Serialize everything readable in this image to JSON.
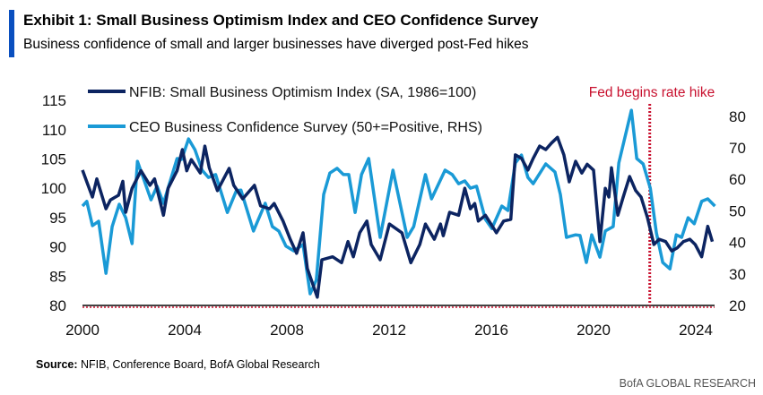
{
  "header": {
    "title": "Exhibit 1: Small Business Optimism Index and CEO Confidence Survey",
    "subtitle": "Business confidence of small and larger businesses have diverged post-Fed hikes",
    "accent_color": "#0a4fbf"
  },
  "footer": {
    "source_label": "Source:",
    "source_text": " NFIB, Conference Board, BofA Global Research",
    "brand": "BofA GLOBAL RESEARCH"
  },
  "chart_data": {
    "type": "line",
    "xlim": [
      2000,
      2024.75
    ],
    "x_ticks": [
      "2000",
      "2004",
      "2008",
      "2012",
      "2016",
      "2020",
      "2024"
    ],
    "y_left": {
      "lim": [
        80,
        115
      ],
      "ticks": [
        "80",
        "85",
        "90",
        "95",
        "100",
        "105",
        "110",
        "115"
      ]
    },
    "y_right": {
      "lim": [
        20,
        85
      ],
      "ticks": [
        "20",
        "30",
        "40",
        "50",
        "60",
        "70",
        "80"
      ]
    },
    "grid": false,
    "legend_placement": "top-left",
    "annotation": {
      "text": "Fed begins rate hike",
      "x": 2022.2,
      "color": "#c8102e"
    },
    "series": [
      {
        "name": "NFIB: Small Business Optimism Index (SA, 1986=100)",
        "axis": "left",
        "color": "#0c2461",
        "points": [
          [
            2000.0,
            103.1
          ],
          [
            2000.17,
            101.1
          ],
          [
            2000.39,
            98.5
          ],
          [
            2000.56,
            101.6
          ],
          [
            2000.92,
            96.5
          ],
          [
            2001.09,
            98
          ],
          [
            2001.41,
            98.8
          ],
          [
            2001.58,
            101.2
          ],
          [
            2001.69,
            95.9
          ],
          [
            2001.94,
            100
          ],
          [
            2002.29,
            103
          ],
          [
            2002.64,
            100.5
          ],
          [
            2002.82,
            101.6
          ],
          [
            2003.17,
            95.4
          ],
          [
            2003.35,
            100
          ],
          [
            2003.7,
            103
          ],
          [
            2003.91,
            106.6
          ],
          [
            2004.08,
            103
          ],
          [
            2004.26,
            104.9
          ],
          [
            2004.61,
            102.6
          ],
          [
            2004.79,
            107.2
          ],
          [
            2004.96,
            103.5
          ],
          [
            2005.28,
            99.6
          ],
          [
            2005.74,
            103.4
          ],
          [
            2005.92,
            100.5
          ],
          [
            2006.27,
            98.2
          ],
          [
            2006.73,
            100.5
          ],
          [
            2006.97,
            97
          ],
          [
            2007.32,
            96.5
          ],
          [
            2007.5,
            97.4
          ],
          [
            2007.85,
            94.4
          ],
          [
            2008.13,
            91.3
          ],
          [
            2008.38,
            88.9
          ],
          [
            2008.63,
            92.4
          ],
          [
            2008.8,
            86.3
          ],
          [
            2009.19,
            81.4
          ],
          [
            2009.37,
            87.8
          ],
          [
            2009.79,
            88.3
          ],
          [
            2010.14,
            87.3
          ],
          [
            2010.39,
            90.9
          ],
          [
            2010.6,
            88.3
          ],
          [
            2010.85,
            92.4
          ],
          [
            2011.13,
            94.4
          ],
          [
            2011.3,
            90.4
          ],
          [
            2011.65,
            87.8
          ],
          [
            2012.01,
            93.9
          ],
          [
            2012.5,
            92.4
          ],
          [
            2012.85,
            87.3
          ],
          [
            2013.2,
            90.4
          ],
          [
            2013.42,
            93.9
          ],
          [
            2013.77,
            91.3
          ],
          [
            2014.01,
            93.9
          ],
          [
            2014.12,
            91.9
          ],
          [
            2014.37,
            95.9
          ],
          [
            2014.72,
            95.4
          ],
          [
            2014.96,
            100
          ],
          [
            2015.18,
            96.5
          ],
          [
            2015.35,
            97.4
          ],
          [
            2015.49,
            94.4
          ],
          [
            2015.77,
            95.4
          ],
          [
            2016.2,
            92.4
          ],
          [
            2016.48,
            94.4
          ],
          [
            2016.76,
            94.7
          ],
          [
            2016.94,
            105.7
          ],
          [
            2017.18,
            105.1
          ],
          [
            2017.43,
            103.1
          ],
          [
            2017.64,
            105.1
          ],
          [
            2017.89,
            107.2
          ],
          [
            2018.13,
            106.6
          ],
          [
            2018.35,
            107.7
          ],
          [
            2018.59,
            108.7
          ],
          [
            2018.84,
            105.7
          ],
          [
            2019.05,
            101.1
          ],
          [
            2019.3,
            104.6
          ],
          [
            2019.54,
            102.6
          ],
          [
            2019.75,
            104.1
          ],
          [
            2020.0,
            103.1
          ],
          [
            2020.25,
            90.9
          ],
          [
            2020.46,
            100
          ],
          [
            2020.6,
            98.5
          ],
          [
            2020.7,
            103.5
          ],
          [
            2020.95,
            95.4
          ],
          [
            2021.16,
            98.5
          ],
          [
            2021.41,
            102
          ],
          [
            2021.65,
            99.6
          ],
          [
            2021.86,
            98.5
          ],
          [
            2022.11,
            95
          ],
          [
            2022.36,
            90.4
          ],
          [
            2022.57,
            91.3
          ],
          [
            2022.82,
            90.9
          ],
          [
            2023.06,
            89.3
          ],
          [
            2023.27,
            89.8
          ],
          [
            2023.52,
            90.9
          ],
          [
            2023.77,
            91.3
          ],
          [
            2023.98,
            90.4
          ],
          [
            2024.23,
            88.3
          ],
          [
            2024.47,
            93.5
          ],
          [
            2024.65,
            90.9
          ]
        ]
      },
      {
        "name": "CEO Business Confidence Survey (50+=Positive, RHS)",
        "axis": "right",
        "color": "#1a9ad6",
        "points": [
          [
            2000.0,
            51.5
          ],
          [
            2000.17,
            53
          ],
          [
            2000.39,
            45.3
          ],
          [
            2000.63,
            46.7
          ],
          [
            2000.92,
            30.2
          ],
          [
            2001.16,
            45
          ],
          [
            2001.44,
            52.1
          ],
          [
            2001.69,
            47.8
          ],
          [
            2001.94,
            39.6
          ],
          [
            2002.15,
            65.7
          ],
          [
            2002.68,
            53.5
          ],
          [
            2002.92,
            57.8
          ],
          [
            2003.17,
            52.4
          ],
          [
            2003.7,
            66.6
          ],
          [
            2003.88,
            66.3
          ],
          [
            2004.15,
            72.8
          ],
          [
            2004.4,
            69.4
          ],
          [
            2004.68,
            62.9
          ],
          [
            2004.93,
            60.6
          ],
          [
            2005.21,
            61.5
          ],
          [
            2005.67,
            49.5
          ],
          [
            2006.02,
            56.4
          ],
          [
            2006.2,
            56.6
          ],
          [
            2006.69,
            43.6
          ],
          [
            2007.15,
            52.4
          ],
          [
            2007.43,
            45
          ],
          [
            2007.68,
            43.6
          ],
          [
            2007.96,
            38.8
          ],
          [
            2008.27,
            37.3
          ],
          [
            2008.63,
            39.3
          ],
          [
            2008.91,
            23.7
          ],
          [
            2009.15,
            28
          ],
          [
            2009.44,
            55.2
          ],
          [
            2009.68,
            62
          ],
          [
            2009.96,
            63.5
          ],
          [
            2010.21,
            61.5
          ],
          [
            2010.42,
            61.5
          ],
          [
            2010.67,
            49.5
          ],
          [
            2010.92,
            61.5
          ],
          [
            2011.2,
            66.6
          ],
          [
            2011.65,
            41.6
          ],
          [
            2012.15,
            62.9
          ],
          [
            2012.71,
            41.6
          ],
          [
            2012.96,
            45
          ],
          [
            2013.42,
            61.5
          ],
          [
            2013.66,
            53.8
          ],
          [
            2014.19,
            62.9
          ],
          [
            2014.47,
            61.5
          ],
          [
            2014.72,
            58.6
          ],
          [
            2014.96,
            59.5
          ],
          [
            2015.18,
            57.2
          ],
          [
            2015.42,
            57.8
          ],
          [
            2015.77,
            47.3
          ],
          [
            2016.02,
            44.4
          ],
          [
            2016.41,
            51.5
          ],
          [
            2016.65,
            50.1
          ],
          [
            2016.94,
            65.2
          ],
          [
            2017.18,
            67.7
          ],
          [
            2017.43,
            60.6
          ],
          [
            2017.64,
            58.6
          ],
          [
            2018.13,
            64.9
          ],
          [
            2018.49,
            62.3
          ],
          [
            2018.7,
            55.2
          ],
          [
            2018.94,
            41.6
          ],
          [
            2019.3,
            42.4
          ],
          [
            2019.47,
            42.2
          ],
          [
            2019.72,
            33.6
          ],
          [
            2019.93,
            42.4
          ],
          [
            2020.25,
            35.3
          ],
          [
            2020.46,
            43.6
          ],
          [
            2020.77,
            45
          ],
          [
            2020.99,
            65.2
          ],
          [
            2021.48,
            81.9
          ],
          [
            2021.69,
            66.6
          ],
          [
            2021.94,
            64.9
          ],
          [
            2022.22,
            57.2
          ],
          [
            2022.46,
            43
          ],
          [
            2022.71,
            33.6
          ],
          [
            2022.99,
            31.6
          ],
          [
            2023.24,
            42.4
          ],
          [
            2023.45,
            41.6
          ],
          [
            2023.7,
            47.8
          ],
          [
            2023.94,
            45.9
          ],
          [
            2024.23,
            53
          ],
          [
            2024.47,
            53.8
          ],
          [
            2024.75,
            51.5
          ]
        ]
      }
    ]
  }
}
